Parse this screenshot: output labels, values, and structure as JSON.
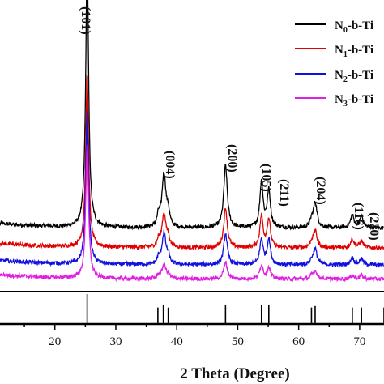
{
  "chart_data": {
    "type": "line",
    "xlabel": "2 Theta (Degree)",
    "ylabel": "",
    "xlim": [
      11,
      74
    ],
    "x_ticks": [
      20,
      30,
      40,
      50,
      60,
      70
    ],
    "legend_position": "top-right",
    "series": [
      {
        "name": "N",
        "sub": "0",
        "suffix": "-b-Ti",
        "color": "#000000",
        "offset": 0.9
      },
      {
        "name": "N",
        "sub": "1",
        "suffix": "-b-Ti",
        "color": "#e00000",
        "offset": 0.55
      },
      {
        "name": "N",
        "sub": "2",
        "suffix": "-b-Ti",
        "color": "#1010e0",
        "offset": 0.25
      },
      {
        "name": "N",
        "sub": "3",
        "suffix": "-b-Ti",
        "color": "#e020e0",
        "offset": 0.0
      }
    ],
    "peaks": [
      {
        "pos": 25.3,
        "width": 0.28,
        "heights": [
          4.7,
          3.05,
          2.7,
          2.35
        ]
      },
      {
        "pos": 37.0,
        "width": 0.25,
        "heights": [
          0.18,
          0.12,
          0.1,
          0.06
        ]
      },
      {
        "pos": 37.9,
        "width": 0.4,
        "heights": [
          0.95,
          0.6,
          0.55,
          0.25
        ]
      },
      {
        "pos": 38.6,
        "width": 0.25,
        "heights": [
          0.22,
          0.15,
          0.12,
          0.06
        ]
      },
      {
        "pos": 48.0,
        "width": 0.35,
        "heights": [
          1.1,
          0.7,
          0.55,
          0.3
        ]
      },
      {
        "pos": 53.9,
        "width": 0.32,
        "heights": [
          0.8,
          0.55,
          0.45,
          0.25
        ]
      },
      {
        "pos": 55.1,
        "width": 0.32,
        "heights": [
          0.65,
          0.5,
          0.45,
          0.2
        ]
      },
      {
        "pos": 62.1,
        "width": 0.25,
        "heights": [
          0.1,
          0.08,
          0.06,
          0.04
        ]
      },
      {
        "pos": 62.7,
        "width": 0.38,
        "heights": [
          0.45,
          0.3,
          0.28,
          0.15
        ]
      },
      {
        "pos": 68.8,
        "width": 0.35,
        "heights": [
          0.22,
          0.15,
          0.12,
          0.06
        ]
      },
      {
        "pos": 70.3,
        "width": 0.35,
        "heights": [
          0.2,
          0.12,
          0.1,
          0.06
        ]
      }
    ],
    "peak_labels": [
      {
        "text": "(101)",
        "x": 25.3
      },
      {
        "text": "(004)",
        "x": 37.9
      },
      {
        "text": "(200)",
        "x": 48.0
      },
      {
        "text": "(105)",
        "x": 53.9
      },
      {
        "text": "(211)",
        "x": 55.1
      },
      {
        "text": "(204)",
        "x": 62.7
      },
      {
        "text": "(116)",
        "x": 68.8
      },
      {
        "text": "(220)",
        "x": 70.3
      }
    ],
    "reference_lines": [
      {
        "x": 25.3,
        "intensity": 1.0
      },
      {
        "x": 36.9,
        "intensity": 0.55
      },
      {
        "x": 37.8,
        "intensity": 0.65
      },
      {
        "x": 38.6,
        "intensity": 0.55
      },
      {
        "x": 48.0,
        "intensity": 0.65
      },
      {
        "x": 53.9,
        "intensity": 0.65
      },
      {
        "x": 55.1,
        "intensity": 0.65
      },
      {
        "x": 62.1,
        "intensity": 0.55
      },
      {
        "x": 62.7,
        "intensity": 0.6
      },
      {
        "x": 68.8,
        "intensity": 0.55
      },
      {
        "x": 70.3,
        "intensity": 0.55
      },
      {
        "x": 74.0,
        "intensity": 0.55
      }
    ]
  }
}
